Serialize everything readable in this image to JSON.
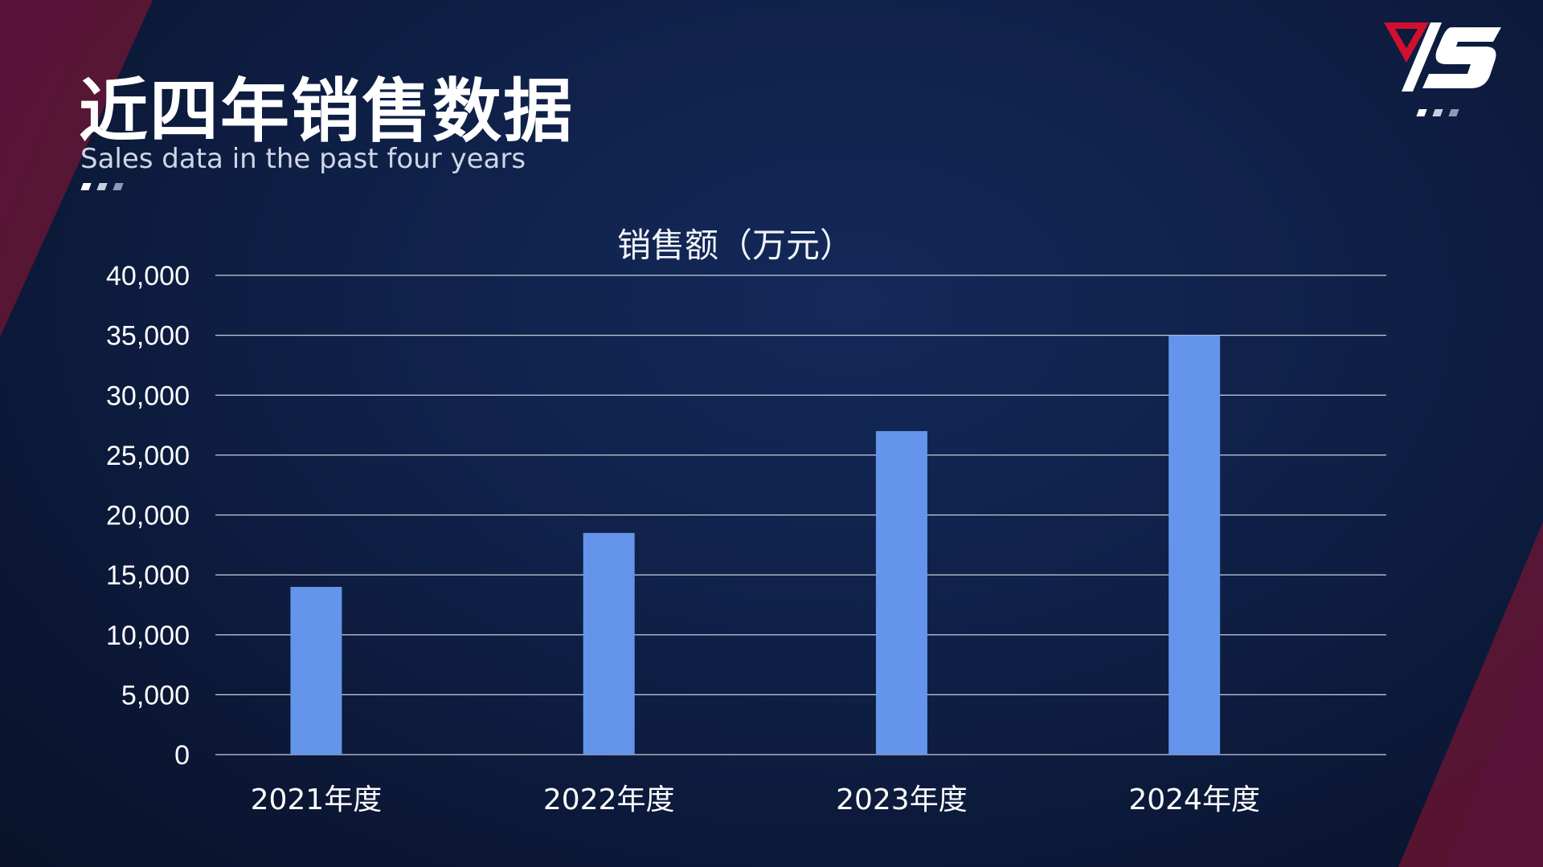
{
  "slide": {
    "title": "近四年销售数据",
    "subtitle": "Sales data in the past four years"
  },
  "colors": {
    "background": "#0d1a3a",
    "bar": "#6495ea",
    "accent_red": "#c8102e",
    "gridline": "#c9cfdc"
  },
  "logo": {
    "icon": "brand-logo-icon"
  },
  "chart_data": {
    "type": "bar",
    "title": "销售额（万元）",
    "categories": [
      "2021年度",
      "2022年度",
      "2023年度",
      "2024年度"
    ],
    "values": [
      14000,
      18500,
      27000,
      35000
    ],
    "ylim": [
      0,
      40000
    ],
    "yticks": [
      0,
      5000,
      10000,
      15000,
      20000,
      25000,
      30000,
      35000,
      40000
    ],
    "ytick_labels": [
      "0",
      "5,000",
      "10,000",
      "15,000",
      "20,000",
      "25,000",
      "30,000",
      "35,000",
      "40,000"
    ],
    "xlabel": "",
    "ylabel": "",
    "grid": true,
    "legend": "none"
  }
}
